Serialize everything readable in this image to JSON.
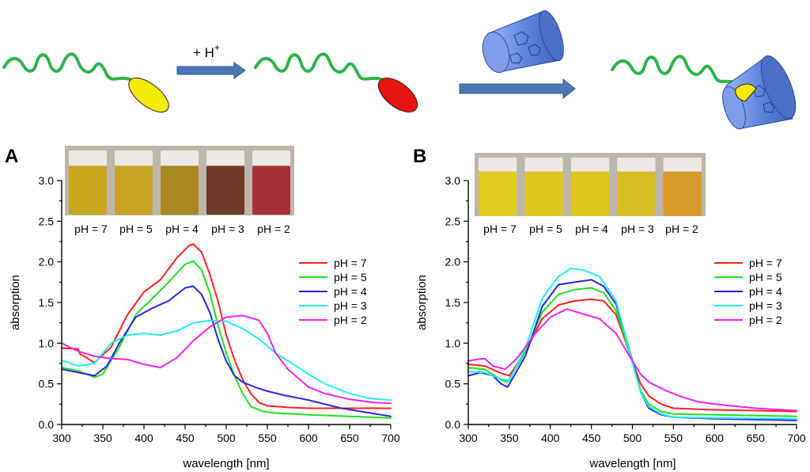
{
  "scheme": {
    "protonation_label": "+ H",
    "protonation_superscript": "+"
  },
  "colors": {
    "chain": "#2db34a",
    "neutral_dye": "#f5eb0a",
    "protonated_dye": "#e8140f",
    "cyclodextrin": "#6a8fe0",
    "arrow": "#4b78b4"
  },
  "chart_data": [
    {
      "panel": "A",
      "type": "line",
      "xlabel": "wavelength [nm]",
      "ylabel": "absorption",
      "xlim": [
        300,
        700
      ],
      "ylim": [
        0,
        3.0
      ],
      "xticks": [
        "300",
        "350",
        "400",
        "450",
        "500",
        "550",
        "600",
        "650",
        "700"
      ],
      "yticks": [
        "0.0",
        "0.5",
        "1.0",
        "1.5",
        "2.0",
        "2.5",
        "3.0"
      ],
      "legend_position": "right",
      "photo_labels": [
        "pH = 7",
        "pH = 5",
        "pH = 4",
        "pH = 3",
        "pH = 2"
      ],
      "photo_colors": [
        "#c9a820",
        "#c8a424",
        "#a98820",
        "#6e3b2a",
        "#a63038"
      ],
      "series": [
        {
          "name": "pH = 7",
          "color": "#ff2020",
          "points": [
            [
              300,
              0.94
            ],
            [
              320,
              0.93
            ],
            [
              322,
              0.87
            ],
            [
              340,
              0.76
            ],
            [
              360,
              0.95
            ],
            [
              380,
              1.35
            ],
            [
              400,
              1.63
            ],
            [
              420,
              1.78
            ],
            [
              440,
              2.05
            ],
            [
              455,
              2.2
            ],
            [
              460,
              2.22
            ],
            [
              470,
              2.12
            ],
            [
              480,
              1.85
            ],
            [
              490,
              1.52
            ],
            [
              500,
              1.1
            ],
            [
              510,
              0.8
            ],
            [
              520,
              0.55
            ],
            [
              530,
              0.38
            ],
            [
              540,
              0.27
            ],
            [
              550,
              0.23
            ],
            [
              575,
              0.21
            ],
            [
              600,
              0.2
            ],
            [
              650,
              0.2
            ],
            [
              700,
              0.2
            ]
          ]
        },
        {
          "name": "pH = 5",
          "color": "#22dd22",
          "points": [
            [
              300,
              0.7
            ],
            [
              320,
              0.66
            ],
            [
              340,
              0.58
            ],
            [
              350,
              0.62
            ],
            [
              370,
              0.95
            ],
            [
              390,
              1.35
            ],
            [
              410,
              1.55
            ],
            [
              430,
              1.75
            ],
            [
              450,
              1.97
            ],
            [
              460,
              2.01
            ],
            [
              470,
              1.9
            ],
            [
              480,
              1.62
            ],
            [
              490,
              1.22
            ],
            [
              500,
              0.88
            ],
            [
              510,
              0.6
            ],
            [
              520,
              0.38
            ],
            [
              530,
              0.22
            ],
            [
              545,
              0.16
            ],
            [
              560,
              0.14
            ],
            [
              600,
              0.12
            ],
            [
              650,
              0.1
            ],
            [
              700,
              0.08
            ]
          ]
        },
        {
          "name": "pH = 4",
          "color": "#2626dd",
          "points": [
            [
              300,
              0.68
            ],
            [
              320,
              0.64
            ],
            [
              340,
              0.6
            ],
            [
              355,
              0.72
            ],
            [
              370,
              1.0
            ],
            [
              390,
              1.32
            ],
            [
              410,
              1.43
            ],
            [
              430,
              1.52
            ],
            [
              450,
              1.68
            ],
            [
              460,
              1.7
            ],
            [
              470,
              1.6
            ],
            [
              480,
              1.38
            ],
            [
              490,
              1.05
            ],
            [
              500,
              0.78
            ],
            [
              510,
              0.6
            ],
            [
              520,
              0.52
            ],
            [
              535,
              0.46
            ],
            [
              550,
              0.41
            ],
            [
              570,
              0.36
            ],
            [
              600,
              0.3
            ],
            [
              640,
              0.2
            ],
            [
              670,
              0.15
            ],
            [
              700,
              0.1
            ]
          ]
        },
        {
          "name": "pH = 3",
          "color": "#22eeee",
          "points": [
            [
              300,
              0.79
            ],
            [
              320,
              0.72
            ],
            [
              340,
              0.75
            ],
            [
              360,
              1.0
            ],
            [
              380,
              1.1
            ],
            [
              400,
              1.12
            ],
            [
              420,
              1.1
            ],
            [
              440,
              1.15
            ],
            [
              460,
              1.25
            ],
            [
              480,
              1.28
            ],
            [
              500,
              1.27
            ],
            [
              520,
              1.18
            ],
            [
              540,
              1.05
            ],
            [
              560,
              0.88
            ],
            [
              580,
              0.75
            ],
            [
              600,
              0.62
            ],
            [
              620,
              0.5
            ],
            [
              650,
              0.38
            ],
            [
              675,
              0.32
            ],
            [
              700,
              0.3
            ]
          ]
        },
        {
          "name": "pH = 2",
          "color": "#ee22ee",
          "points": [
            [
              300,
              1.0
            ],
            [
              320,
              0.9
            ],
            [
              340,
              0.84
            ],
            [
              360,
              0.81
            ],
            [
              380,
              0.8
            ],
            [
              400,
              0.74
            ],
            [
              420,
              0.7
            ],
            [
              440,
              0.82
            ],
            [
              460,
              1.03
            ],
            [
              480,
              1.2
            ],
            [
              500,
              1.32
            ],
            [
              520,
              1.34
            ],
            [
              540,
              1.28
            ],
            [
              550,
              1.12
            ],
            [
              560,
              0.88
            ],
            [
              575,
              0.68
            ],
            [
              600,
              0.46
            ],
            [
              620,
              0.38
            ],
            [
              650,
              0.31
            ],
            [
              680,
              0.27
            ],
            [
              700,
              0.26
            ]
          ]
        }
      ]
    },
    {
      "panel": "B",
      "type": "line",
      "xlabel": "wavelength [nm]",
      "ylabel": "absorption",
      "xlim": [
        300,
        700
      ],
      "ylim": [
        0,
        3.0
      ],
      "xticks": [
        "300",
        "350",
        "400",
        "450",
        "500",
        "550",
        "600",
        "650",
        "700"
      ],
      "yticks": [
        "0.0",
        "0.5",
        "1.0",
        "1.5",
        "2.0",
        "2.5",
        "3.0"
      ],
      "legend_position": "right",
      "photo_labels": [
        "pH = 7",
        "pH = 5",
        "pH = 4",
        "pH = 3",
        "pH = 2"
      ],
      "photo_colors": [
        "#e0cc20",
        "#dec81e",
        "#dcc81c",
        "#d6be22",
        "#d69a2a"
      ],
      "series": [
        {
          "name": "pH = 7",
          "color": "#ff2020",
          "points": [
            [
              300,
              0.74
            ],
            [
              320,
              0.72
            ],
            [
              340,
              0.63
            ],
            [
              350,
              0.6
            ],
            [
              370,
              0.9
            ],
            [
              390,
              1.3
            ],
            [
              410,
              1.47
            ],
            [
              430,
              1.52
            ],
            [
              450,
              1.54
            ],
            [
              465,
              1.52
            ],
            [
              480,
              1.35
            ],
            [
              490,
              1.07
            ],
            [
              500,
              0.78
            ],
            [
              510,
              0.5
            ],
            [
              520,
              0.35
            ],
            [
              535,
              0.25
            ],
            [
              550,
              0.2
            ],
            [
              600,
              0.18
            ],
            [
              650,
              0.17
            ],
            [
              700,
              0.16
            ]
          ]
        },
        {
          "name": "pH = 5",
          "color": "#22dd22",
          "points": [
            [
              300,
              0.7
            ],
            [
              320,
              0.68
            ],
            [
              340,
              0.55
            ],
            [
              348,
              0.52
            ],
            [
              370,
              0.9
            ],
            [
              390,
              1.38
            ],
            [
              410,
              1.6
            ],
            [
              430,
              1.66
            ],
            [
              450,
              1.68
            ],
            [
              465,
              1.62
            ],
            [
              480,
              1.4
            ],
            [
              490,
              1.1
            ],
            [
              500,
              0.76
            ],
            [
              510,
              0.42
            ],
            [
              520,
              0.25
            ],
            [
              535,
              0.16
            ],
            [
              550,
              0.13
            ],
            [
              600,
              0.12
            ],
            [
              650,
              0.11
            ],
            [
              700,
              0.1
            ]
          ]
        },
        {
          "name": "pH = 4",
          "color": "#2626dd",
          "points": [
            [
              300,
              0.6
            ],
            [
              315,
              0.64
            ],
            [
              330,
              0.6
            ],
            [
              340,
              0.5
            ],
            [
              348,
              0.46
            ],
            [
              370,
              0.85
            ],
            [
              390,
              1.45
            ],
            [
              410,
              1.72
            ],
            [
              430,
              1.75
            ],
            [
              450,
              1.78
            ],
            [
              465,
              1.7
            ],
            [
              480,
              1.48
            ],
            [
              490,
              1.15
            ],
            [
              500,
              0.78
            ],
            [
              510,
              0.4
            ],
            [
              520,
              0.2
            ],
            [
              535,
              0.12
            ],
            [
              550,
              0.09
            ],
            [
              600,
              0.07
            ],
            [
              700,
              0.05
            ]
          ]
        },
        {
          "name": "pH = 3",
          "color": "#22eeee",
          "points": [
            [
              300,
              0.65
            ],
            [
              320,
              0.64
            ],
            [
              340,
              0.56
            ],
            [
              350,
              0.54
            ],
            [
              370,
              0.95
            ],
            [
              390,
              1.55
            ],
            [
              410,
              1.82
            ],
            [
              425,
              1.92
            ],
            [
              440,
              1.9
            ],
            [
              460,
              1.82
            ],
            [
              480,
              1.52
            ],
            [
              490,
              1.15
            ],
            [
              500,
              0.76
            ],
            [
              510,
              0.4
            ],
            [
              520,
              0.22
            ],
            [
              535,
              0.13
            ],
            [
              550,
              0.09
            ],
            [
              600,
              0.08
            ],
            [
              700,
              0.07
            ]
          ]
        },
        {
          "name": "pH = 2",
          "color": "#ee22ee",
          "points": [
            [
              300,
              0.78
            ],
            [
              310,
              0.8
            ],
            [
              320,
              0.81
            ],
            [
              330,
              0.72
            ],
            [
              345,
              0.68
            ],
            [
              360,
              0.82
            ],
            [
              380,
              1.1
            ],
            [
              400,
              1.32
            ],
            [
              420,
              1.42
            ],
            [
              440,
              1.36
            ],
            [
              460,
              1.3
            ],
            [
              480,
              1.12
            ],
            [
              500,
              0.78
            ],
            [
              510,
              0.62
            ],
            [
              520,
              0.52
            ],
            [
              540,
              0.42
            ],
            [
              560,
              0.34
            ],
            [
              580,
              0.28
            ],
            [
              600,
              0.25
            ],
            [
              650,
              0.2
            ],
            [
              700,
              0.17
            ]
          ]
        }
      ]
    }
  ]
}
